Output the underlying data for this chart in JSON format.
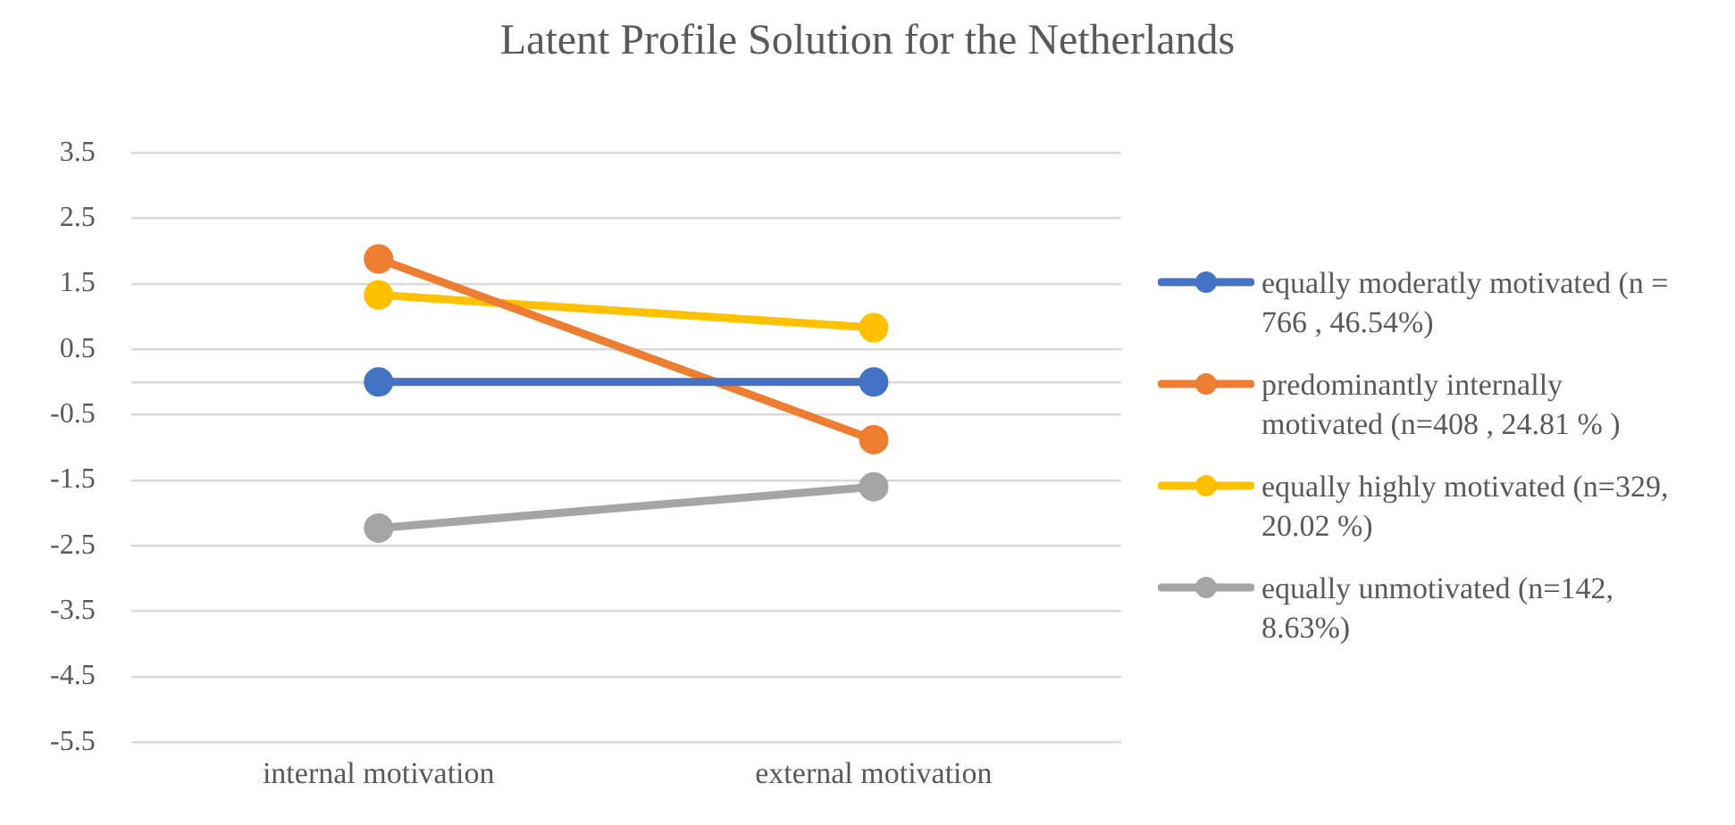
{
  "chart_data": {
    "type": "line",
    "title": "Latent Profile Solution for the Netherlands",
    "categories": [
      "internal motivation",
      "external motivation"
    ],
    "series": [
      {
        "name": "equally moderatly motivated (n = 766 , 46.54%)",
        "color": "#4472c4",
        "values": [
          0,
          0
        ]
      },
      {
        "name": "predominantly internally motivated (n=408 , 24.81 % )",
        "color": "#ed7d31",
        "values": [
          1.88,
          -0.88
        ]
      },
      {
        "name": "equally highly motivated (n=329, 20.02 %)",
        "color": "#ffc000",
        "values": [
          1.33,
          0.83
        ]
      },
      {
        "name": "equally unmotivated (n=142, 8.63%)",
        "color": "#a5a5a5",
        "values": [
          -2.23,
          -1.6
        ]
      }
    ],
    "ylim": [
      -5.5,
      3.5
    ],
    "yticks": [
      3.5,
      2.5,
      1.5,
      0.5,
      {
        "value": 0,
        "label": null
      },
      -0.5,
      -1.5,
      -2.5,
      -3.5,
      -4.5,
      -5.5
    ],
    "grid": "y",
    "legend": "right",
    "marker": "circle",
    "line_style": "solid"
  }
}
